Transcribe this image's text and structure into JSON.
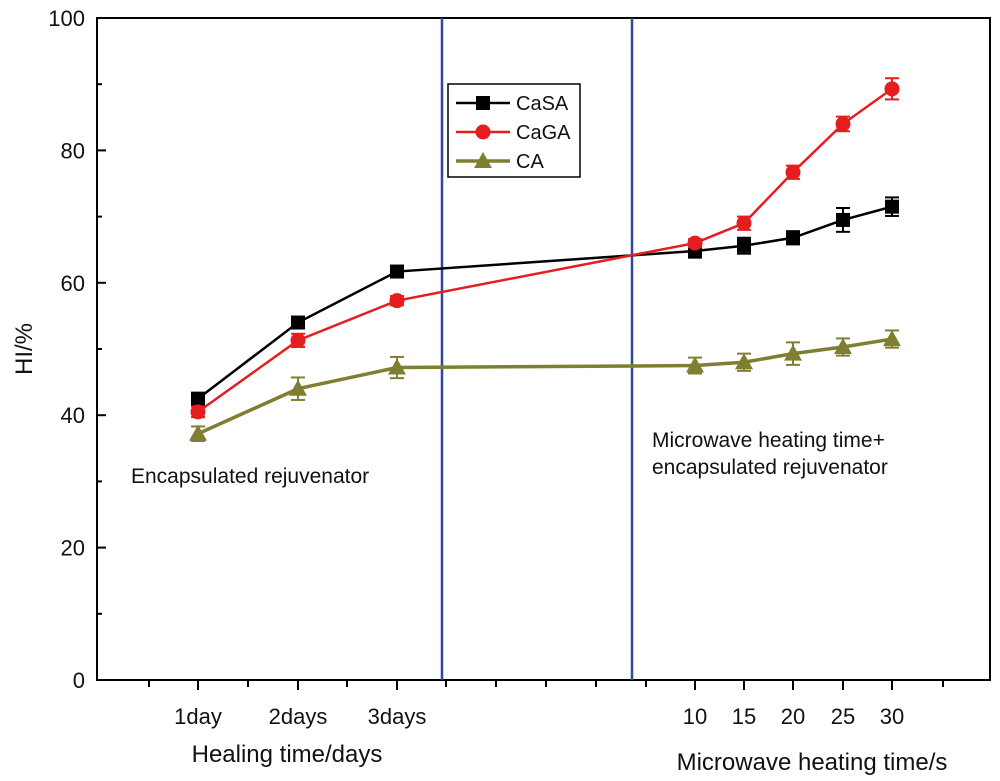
{
  "chart_data": {
    "type": "line",
    "title": "",
    "ylabel": "HI/%",
    "ylim": [
      0,
      100
    ],
    "yticks": [
      0,
      20,
      40,
      60,
      80,
      100
    ],
    "x_categories": [
      "1day",
      "2days",
      "3days",
      "10",
      "15",
      "20",
      "25",
      "30"
    ],
    "xlabel_left": "Healing time/days",
    "xlabel_right": "Microwave heating time/s",
    "annotations": {
      "left": "Encapsulated rejuvenator",
      "right_line1": "Microwave heating time+",
      "right_line2": "encapsulated rejuvenator"
    },
    "series": [
      {
        "name": "CaSA",
        "color": "#000000",
        "marker": "square",
        "values": [
          42.5,
          54.0,
          61.7,
          64.8,
          65.6,
          66.8,
          69.5,
          71.5
        ],
        "errors": [
          0.6,
          0.8,
          0.8,
          1.0,
          1.2,
          1.0,
          1.8,
          1.4
        ]
      },
      {
        "name": "CaGA",
        "color": "#e41e1e",
        "marker": "circle",
        "values": [
          40.5,
          51.3,
          57.3,
          66.0,
          69.0,
          76.7,
          84.0,
          89.3
        ],
        "errors": [
          0.8,
          1.0,
          0.7,
          0.6,
          1.0,
          1.0,
          1.1,
          1.6
        ]
      },
      {
        "name": "CA",
        "color": "#7f7f32",
        "marker": "triangle",
        "values": [
          37.2,
          44.0,
          47.2,
          47.5,
          48.0,
          49.3,
          50.3,
          51.5
        ],
        "errors": [
          1.1,
          1.7,
          1.6,
          1.2,
          1.3,
          1.7,
          1.3,
          1.3
        ]
      }
    ]
  }
}
